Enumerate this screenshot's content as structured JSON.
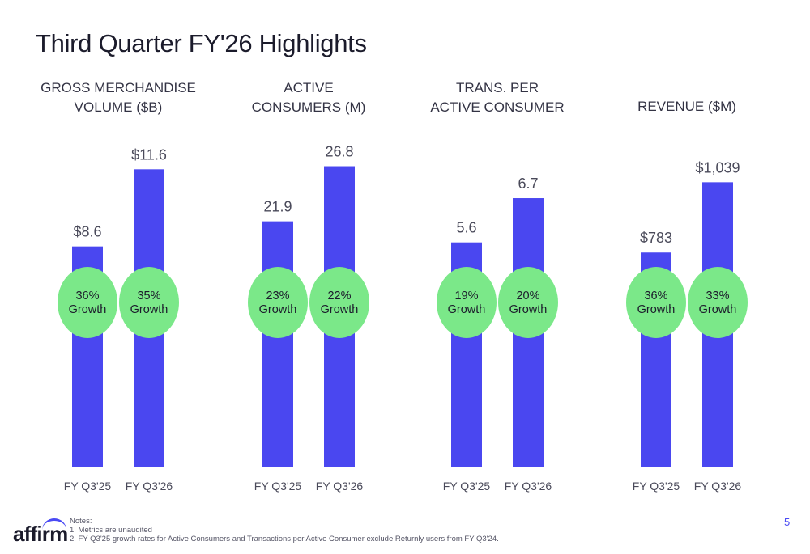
{
  "title": "Third Quarter FY'26 Highlights",
  "colors": {
    "bar": "#4a47f0",
    "badge": "#7be889",
    "text": "#333344",
    "axis_text": "#4a4a5a"
  },
  "chart_data": [
    {
      "type": "bar",
      "title_lines": [
        "GROSS MERCHANDISE",
        "VOLUME ($B)"
      ],
      "categories": [
        "FY Q3'25",
        "FY Q3'26"
      ],
      "values": [
        8.6,
        11.6
      ],
      "value_labels": [
        "$8.6",
        "$11.6"
      ],
      "growth_labels": [
        [
          "36%",
          "Growth"
        ],
        [
          "35%",
          "Growth"
        ]
      ],
      "ylim": [
        0,
        12.9
      ]
    },
    {
      "type": "bar",
      "title_lines": [
        "ACTIVE",
        "CONSUMERS (M)"
      ],
      "categories": [
        "FY Q3'25",
        "FY Q3'26"
      ],
      "values": [
        21.9,
        26.8
      ],
      "value_labels": [
        "21.9",
        "26.8"
      ],
      "growth_labels": [
        [
          "23%",
          "Growth"
        ],
        [
          "22%",
          "Growth"
        ]
      ],
      "ylim": [
        0,
        29.5
      ]
    },
    {
      "type": "bar",
      "title_lines": [
        "TRANS. PER",
        "ACTIVE CONSUMER"
      ],
      "categories": [
        "FY Q3'25",
        "FY Q3'26"
      ],
      "values": [
        5.6,
        6.7
      ],
      "value_labels": [
        "5.6",
        "6.7"
      ],
      "growth_labels": [
        [
          "19%",
          "Growth"
        ],
        [
          "20%",
          "Growth"
        ]
      ],
      "ylim": [
        0,
        8.25
      ]
    },
    {
      "type": "bar",
      "title_lines": [
        "REVENUE ($M)"
      ],
      "categories": [
        "FY Q3'25",
        "FY Q3'26"
      ],
      "values": [
        783,
        1039
      ],
      "value_labels": [
        "$783",
        "$1,039"
      ],
      "growth_labels": [
        [
          "36%",
          "Growth"
        ],
        [
          "33%",
          "Growth"
        ]
      ],
      "ylim": [
        0,
        1208
      ]
    }
  ],
  "footer": {
    "logo": "affirm",
    "notes_heading": "Notes:",
    "note_1": "1.   Metrics are unaudited",
    "note_2": "2.   FY Q3'25 growth rates for Active Consumers and Transactions per Active Consumer exclude Returnly users from FY Q3'24.",
    "page_number": "5"
  }
}
